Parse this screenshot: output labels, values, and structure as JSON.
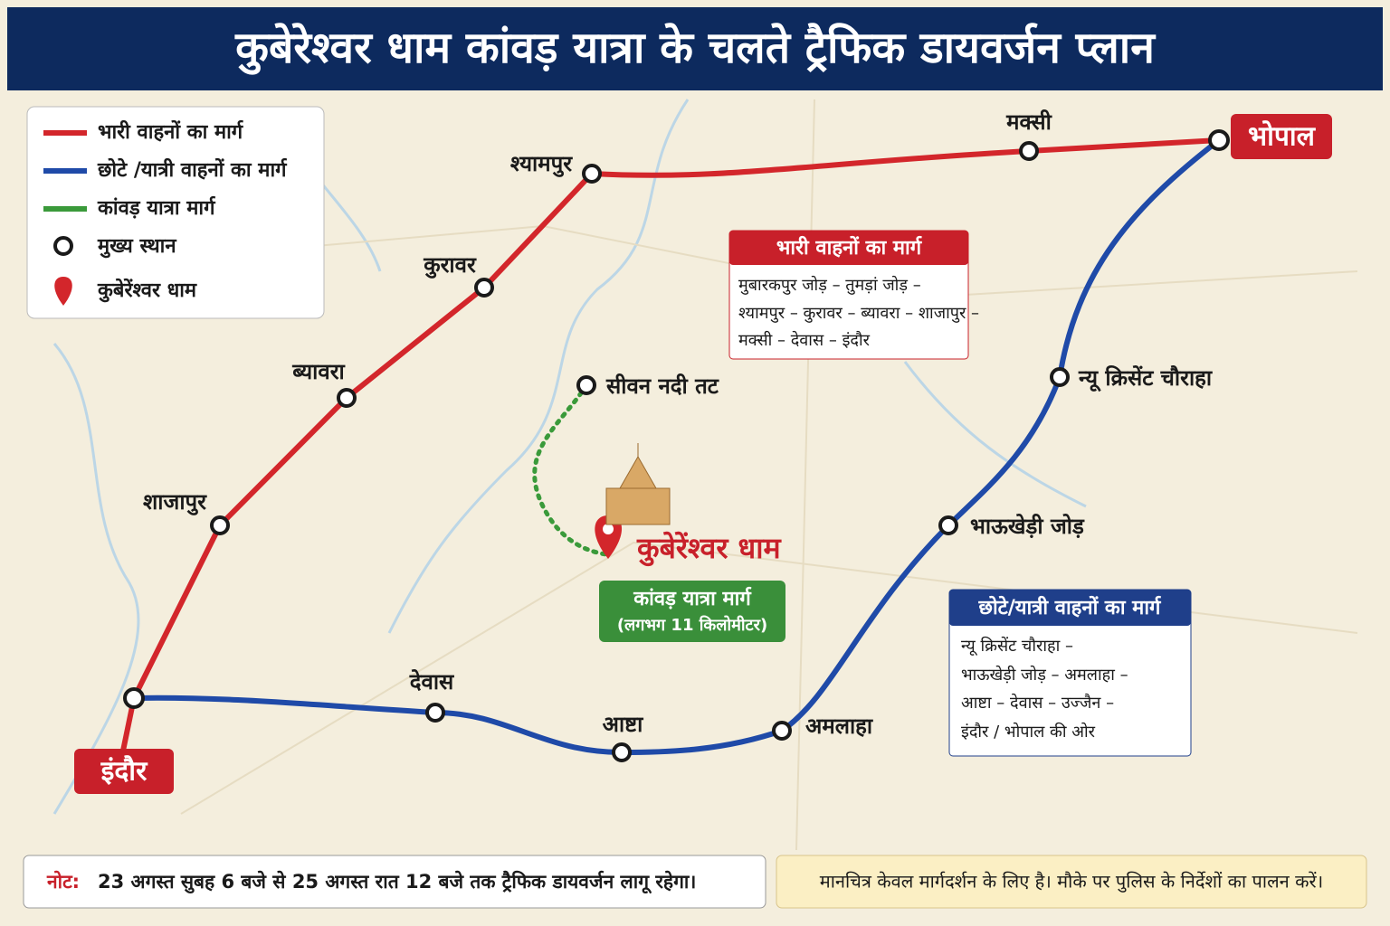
{
  "title": "कुबेरेश्वर धाम कांवड़ यात्रा के चलते ट्रैफिक डायवर्जन प्लान",
  "legend": [
    "भारी वाहनों का मार्ग",
    "छोटे /यात्री वाहनों का मार्ग",
    "कांवड़ यात्रा मार्ग",
    "मुख्य स्थान",
    "कुबेरेंश्वर धाम"
  ],
  "places": [
    "मक्सी",
    "भोपाल",
    "श्यामपुर",
    "कुरावर",
    "ब्यावरा",
    "शाजापुर",
    "इंदौर",
    "देवास",
    "आष्टा",
    "अमलाहा",
    "भाऊखेड़ी जोड़",
    "न्यू क्रिसेंट चौराहा",
    "सीवन नदी तट",
    "कुबेरेंश्वर धाम"
  ],
  "heavy_box": {
    "title": "भारी वाहनों का मार्ग",
    "lines": [
      "मुबारकपुर जोड़ – तुमड़ां जोड़ –",
      "श्यामपुर – कुरावर – ब्यावरा – शाजापुर –",
      "मक्सी – देवास – इंदौर"
    ]
  },
  "light_box": {
    "title": "छोटे/यात्री वाहनों का मार्ग",
    "lines": [
      "न्यू क्रिसेंट चौराहा –",
      "भाऊखेड़ी जोड़ – अमलाहा –",
      "आष्टा – देवास – उज्जैन –",
      "इंदौर / भोपाल की ओर"
    ]
  },
  "kanwar_box": {
    "title": "कांवड़ यात्रा मार्ग",
    "subtitle": "(लगभग 11 किलोमीटर)"
  },
  "note": {
    "label": "नोट:",
    "text": "23 अगस्त सुबह 6 बजे से 25 अगस्त रात 12 बजे तक ट्रैफिक डायवर्जन लागू रहेगा।"
  },
  "disclaimer": "मानचित्र केवल मार्गदर्शन के लिए है। मौके पर पुलिस के निर्देशों का पालन करें।"
}
